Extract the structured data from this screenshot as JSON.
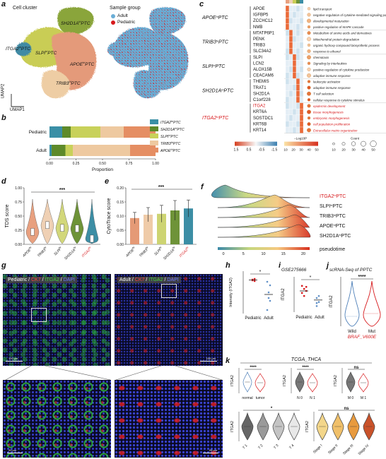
{
  "panels": {
    "a": {
      "letter": "a",
      "cluster_title": "Cell cluster",
      "sample_title": "Sample group",
      "legend": [
        {
          "label": "Adult",
          "color": "#6aaed6"
        },
        {
          "label": "Pediatric",
          "color": "#d7191c"
        }
      ],
      "umap1": "UMAP1",
      "umap2": "UMAP2",
      "cluster_labels": [
        {
          "text": "SH2D1A",
          "sup": "hi",
          "suffix": "PTC"
        },
        {
          "text": "ITGA2",
          "sup": "hi",
          "suffix": "PTC"
        },
        {
          "text": "SLPI",
          "sup": "hi",
          "suffix": "PTC"
        },
        {
          "text": "APOE",
          "sup": "hi",
          "suffix": "PTC"
        },
        {
          "text": "TRIB3",
          "sup": "hi",
          "suffix": "PTC"
        }
      ]
    },
    "b": {
      "letter": "b",
      "rows": [
        "Pediatric",
        "Adult"
      ],
      "xlabel": "Proportion",
      "ticks": [
        "0.00",
        "0.25",
        "0.50",
        "0.75",
        "1.00"
      ],
      "legend": [
        {
          "text": "ITGA2",
          "sup": "hi",
          "suffix": "PTC",
          "color": "#3a8fa6"
        },
        {
          "text": "SH2D1A",
          "sup": "hi",
          "suffix": "PTC",
          "color": "#5e8a2a"
        },
        {
          "text": "SLPI",
          "sup": "hi",
          "suffix": "PTC",
          "color": "#c8d15a"
        },
        {
          "text": "TRIB3",
          "sup": "hi",
          "suffix": "PTC",
          "color": "#eec9a0"
        },
        {
          "text": "APOE",
          "sup": "hi",
          "suffix": "PTC",
          "color": "#e58e63"
        }
      ]
    },
    "c": {
      "letter": "c",
      "groups": [
        {
          "name": "APOE",
          "sup": "hi",
          "suffix": "PTC",
          "genes": [
            "APOE",
            "IGFBP5",
            "ZCCHC12",
            "NMB"
          ],
          "red": false
        },
        {
          "name": "TRIB3",
          "sup": "hi",
          "suffix": "PTC",
          "genes": [
            "MTATP6P1",
            "PENK",
            "TRIB3",
            "SLC34A2"
          ],
          "red": false
        },
        {
          "name": "SLPI",
          "sup": "hi",
          "suffix": "PTC",
          "genes": [
            "SLPI",
            "LCN2",
            "ALOX15B",
            "CEACAM6"
          ],
          "red": false
        },
        {
          "name": "SH2D1A",
          "sup": "hi",
          "suffix": "PTC",
          "genes": [
            "THEMIS",
            "TRAT1",
            "SH2D1A",
            "C1orf228"
          ],
          "red": false
        },
        {
          "name": "ITGA2",
          "sup": "hi",
          "suffix": "PTC",
          "genes": [
            "ITGA2",
            "KRT6A",
            "SOSTDC1",
            "KRT6B",
            "KRT14"
          ],
          "red": true
        }
      ],
      "terms": [
        {
          "text": "lipid transport",
          "red": false
        },
        {
          "text": "negative regulation of cytokine-mediated signaling pathway",
          "red": false
        },
        {
          "text": "developmental maturation",
          "red": false
        },
        {
          "text": "positive regulation of MAPK cascade",
          "red": false
        },
        {
          "text": "Metabolism of amino acids and derivatives",
          "red": false
        },
        {
          "text": "Mitochondrial protein degradation",
          "red": false
        },
        {
          "text": "organic hydroxy compound biosynthetic process",
          "red": false
        },
        {
          "text": "response to ethanol",
          "red": false
        },
        {
          "text": "chemotaxis",
          "red": false
        },
        {
          "text": "Signaling by Interleukins",
          "red": false
        },
        {
          "text": "positive regulation of cytokine production",
          "red": false
        },
        {
          "text": "adaptive immune response",
          "red": false
        },
        {
          "text": "leukocyte activation",
          "red": false
        },
        {
          "text": "adaptive immune response",
          "red": false
        },
        {
          "text": "T cell selection",
          "red": false
        },
        {
          "text": "cellular response to cytokine stimulus",
          "red": false
        },
        {
          "text": "epidermis development",
          "red": true
        },
        {
          "text": "tissue morphogenesis",
          "red": true
        },
        {
          "text": "embryonic morphogenesis",
          "red": true
        },
        {
          "text": "cell population proliferation",
          "red": true
        },
        {
          "text": "Extracellular matrix organization",
          "red": true
        }
      ],
      "scale_ticks": [
        "1.5",
        "0.5",
        "-0.5",
        "-1.5"
      ],
      "pval_title": "−Log10P",
      "pval_ticks": [
        "10",
        "20",
        "30",
        "40",
        "50"
      ],
      "count_title": "Count",
      "count_ticks": [
        "10",
        "20",
        "30",
        "40",
        "50"
      ]
    },
    "d": {
      "letter": "d",
      "ylabel": "TDS score",
      "sig": "***",
      "yticks": [
        "1.00",
        "0.75",
        "0.50",
        "0.25",
        "0.00"
      ],
      "groups": [
        {
          "text": "APOE",
          "sup": "hi",
          "red": false,
          "color": "#e8a07f"
        },
        {
          "text": "TRIB3",
          "sup": "hi",
          "red": false,
          "color": "#efd0b4"
        },
        {
          "text": "SLPI",
          "sup": "hi",
          "red": false,
          "color": "#d2d77a"
        },
        {
          "text": "SH2D1A",
          "sup": "hi",
          "red": false,
          "color": "#6e9338"
        },
        {
          "text": "ITGA2",
          "sup": "hi",
          "red": true,
          "color": "#3c8ea5"
        }
      ]
    },
    "e": {
      "letter": "e",
      "ylabel": "CytoTrace score",
      "sig": "***",
      "yticks": [
        "0.20",
        "0.15",
        "0.10",
        "0.05",
        "0.00"
      ],
      "bars": [
        {
          "text": "APOE",
          "sup": "hi",
          "red": false,
          "value": 0.093,
          "err": 0.02,
          "color": "#e59a76"
        },
        {
          "text": "TRIB3",
          "sup": "hi",
          "red": false,
          "value": 0.105,
          "err": 0.025,
          "color": "#efcba8"
        },
        {
          "text": "SLPI",
          "sup": "hi",
          "red": false,
          "value": 0.108,
          "err": 0.03,
          "color": "#cdd472"
        },
        {
          "text": "SH2D1A",
          "sup": "hi",
          "red": false,
          "value": 0.12,
          "err": 0.035,
          "color": "#6e9338"
        },
        {
          "text": "ITGA2",
          "sup": "hi",
          "red": true,
          "value": 0.127,
          "err": 0.03,
          "color": "#3c8ea5"
        }
      ]
    },
    "f": {
      "letter": "f",
      "labels": [
        {
          "text": "ITGA2",
          "sup": "hi",
          "suffix": "PTC",
          "red": true
        },
        {
          "text": "SLPI",
          "sup": "hi",
          "suffix": "PTC",
          "red": false
        },
        {
          "text": "TRIB3",
          "sup": "hi",
          "suffix": "PTC",
          "red": false
        },
        {
          "text": "APOE",
          "sup": "hi",
          "suffix": "PTC",
          "red": false
        },
        {
          "text": "SH2D1A",
          "sup": "hi",
          "suffix": "PTC",
          "red": false
        }
      ],
      "axis_label": "pseudotime",
      "ticks": [
        "0",
        "5",
        "10",
        "15",
        "20"
      ]
    },
    "g": {
      "letter": "g",
      "left_label": {
        "prefix": "Pediatric / ",
        "ck7": "CK7",
        "sep1": " / ",
        "itga2": "ITGA2",
        "sep2": " / ",
        "dapi": "DAPI"
      },
      "right_label": {
        "prefix": "Adult / ",
        "ck7": "CK7",
        "sep1": " / ",
        "itga2": "ITGA2",
        "sep2": " / ",
        "dapi": "DAPI"
      },
      "scale_top": "100 μm",
      "scale_bottom": "20 μm"
    },
    "h": {
      "letter": "h",
      "ylabel": "Intensity (ITGA2)",
      "sig": "*",
      "xlabels": [
        "Pediatric",
        "Adult"
      ],
      "ped_values": [
        88,
        89,
        87,
        86
      ],
      "adult_values": [
        85,
        70,
        58,
        45,
        62,
        80
      ],
      "ped_mean": 87.5,
      "adult_mean": 67
    },
    "i": {
      "letter": "i",
      "title": "GSE275666",
      "ylabel": "ITGA2",
      "sig": "*",
      "xlabels": [
        "Pediatric",
        "Adult"
      ],
      "ped_values": [
        5.6,
        5.3,
        5.1,
        4.9,
        4.6,
        5.5
      ],
      "adult_values": [
        4.4,
        4.0,
        3.6,
        4.6,
        3.9
      ],
      "ped_mean": 5.1,
      "adult_mean": 4.2
    },
    "j": {
      "letter": "j",
      "title": "scRNA-Seq of PPTC",
      "ylabel": "ITGA2",
      "sig": "****",
      "xlabels": [
        "Wild",
        "Mut"
      ],
      "sublabel": "BRAF_V600E"
    },
    "k": {
      "letter": "k",
      "title": "TCGA_THCA",
      "ylabel": "ITGA2",
      "tumor_panel": {
        "xlabels": [
          "normal",
          "tumor"
        ],
        "sig": "****"
      },
      "n_panel": {
        "xlabels": [
          "N 0",
          "N 1"
        ],
        "sig": "****"
      },
      "m_panel": {
        "xlabels": [
          "M 0",
          "M 1"
        ],
        "sig": "ns"
      },
      "t_panel": {
        "xlabels": [
          "T 1",
          "T 2",
          "T 3",
          "T 4"
        ],
        "sig": "*"
      },
      "stage_panel": {
        "xlabels": [
          "Stage I",
          "Stage II",
          "Stage III",
          "Stage IV"
        ],
        "sig": "ns"
      }
    }
  }
}
